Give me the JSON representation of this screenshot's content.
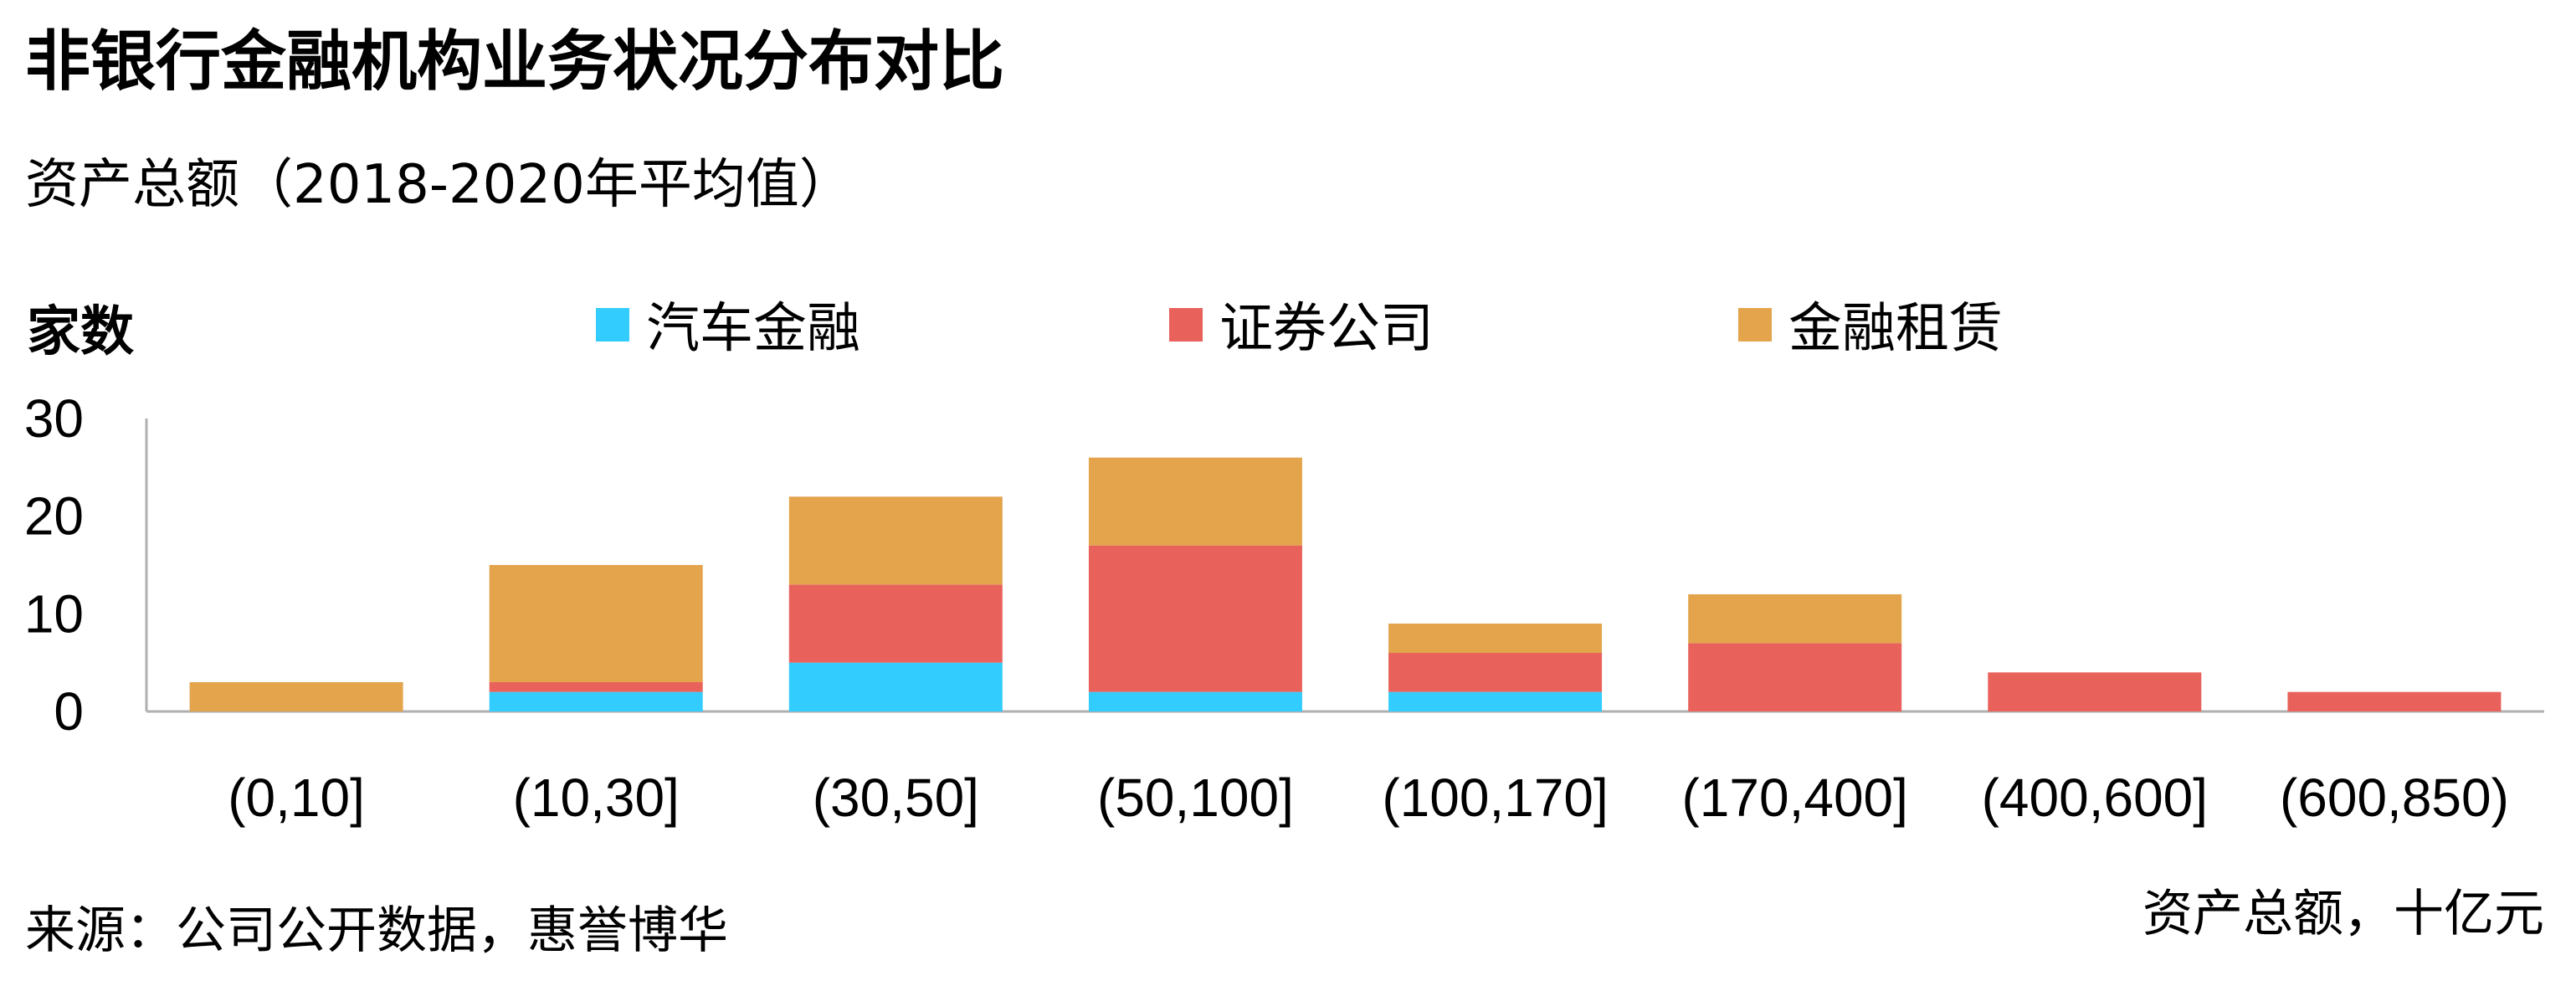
{
  "colors": {
    "auto_finance": "#33CCFF",
    "securities": "#E8625B",
    "leasing": "#E3A44C",
    "axis": "#b0b0b0",
    "text": "#111111"
  },
  "source_note": "来源：公司公开数据，惠誉博华",
  "chart_data": {
    "type": "bar",
    "stacked": true,
    "title": "非银行金融机构业务状况分布对比",
    "subtitle": "资产总额（2018-2020年平均值）",
    "ylabel": "家数",
    "xlabel": "资产总额，十亿元",
    "ylim": [
      0,
      30
    ],
    "yticks": [
      0,
      10,
      20,
      30
    ],
    "grid": false,
    "legend_position": "top",
    "categories": [
      "(0,10]",
      "(10,30]",
      "(30,50]",
      "(50,100]",
      "(100,170]",
      "(170,400]",
      "(400,600]",
      "(600,850)"
    ],
    "series": [
      {
        "name": "汽车金融",
        "color": "#33CCFF",
        "values": [
          0,
          2,
          5,
          2,
          2,
          0,
          0,
          0
        ]
      },
      {
        "name": "证券公司",
        "color": "#E8625B",
        "values": [
          0,
          1,
          8,
          15,
          4,
          7,
          4,
          2
        ]
      },
      {
        "name": "金融租赁",
        "color": "#E3A44C",
        "values": [
          3,
          12,
          9,
          9,
          3,
          5,
          0,
          0
        ]
      }
    ]
  }
}
